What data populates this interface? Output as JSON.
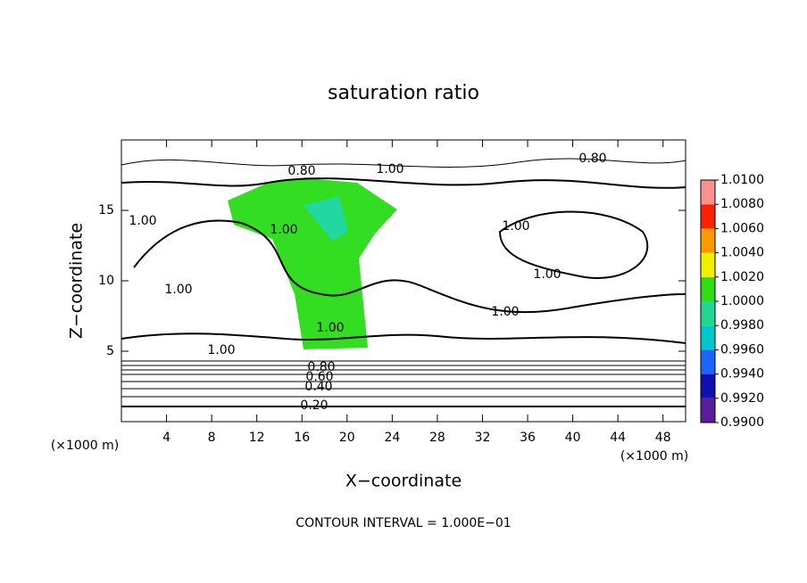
{
  "chart_data": {
    "type": "contour",
    "title": "saturation ratio",
    "x_label": "X−coordinate",
    "y_label": "Z−coordinate",
    "x_unit_label": "(×1000 m)",
    "footer": "CONTOUR INTERVAL = 1.000E−01",
    "xlim": [
      0,
      50
    ],
    "ylim": [
      0,
      20
    ],
    "xticks": [
      4,
      8,
      12,
      16,
      20,
      24,
      28,
      32,
      36,
      40,
      44,
      48
    ],
    "yticks": [
      5,
      10,
      15
    ],
    "contour_labels": [
      "0.80",
      "1.00",
      "0.80",
      "1.00",
      "1.00",
      "1.00",
      "1.00",
      "1.00",
      "1.00",
      "1.00",
      "1.00",
      "0.80",
      "0.60",
      "0.40",
      "0.20"
    ],
    "colorbar": {
      "lim": [
        0.99,
        1.01
      ],
      "ticks": [
        {
          "value": 0.99,
          "label": "0.9900"
        },
        {
          "value": 0.992,
          "label": "0.9920"
        },
        {
          "value": 0.994,
          "label": "0.9940"
        },
        {
          "value": 0.996,
          "label": "0.9960"
        },
        {
          "value": 0.998,
          "label": "0.9980"
        },
        {
          "value": 1.0,
          "label": "1.0000"
        },
        {
          "value": 1.002,
          "label": "1.0020"
        },
        {
          "value": 1.004,
          "label": "1.0040"
        },
        {
          "value": 1.006,
          "label": "1.0060"
        },
        {
          "value": 1.008,
          "label": "1.0080"
        },
        {
          "value": 1.01,
          "label": "1.0100"
        }
      ],
      "colors": [
        "#5a1e9a",
        "#1010b0",
        "#1e64ff",
        "#00c8c8",
        "#20d890",
        "#30dd10",
        "#f0f000",
        "#ff9900",
        "#ff2000",
        "#ff9090"
      ]
    }
  }
}
